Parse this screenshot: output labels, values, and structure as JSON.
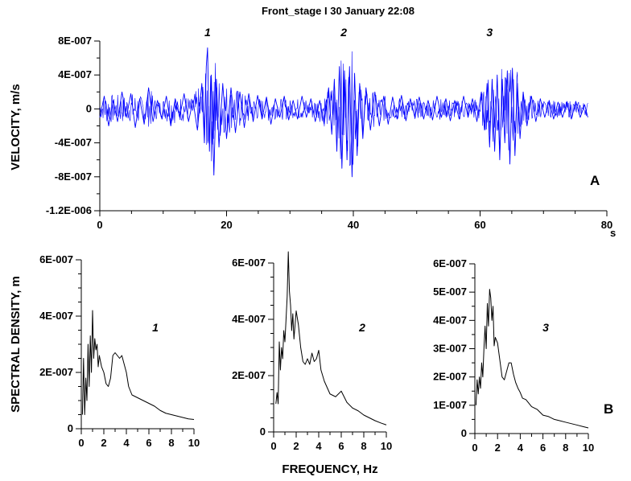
{
  "title": "Front_stage I   30 January 22:08",
  "panel_a_label": "A",
  "panel_b_label": "B",
  "colors": {
    "trace": "#0000ff",
    "spectrum": "#000000",
    "axis": "#000000"
  },
  "chart_data": [
    {
      "type": "line",
      "id": "velocity",
      "ylabel": "VELOCITY, m/s",
      "xunit": "s",
      "xlim": [
        0,
        80
      ],
      "ylim": [
        -1.2e-06,
        8e-07
      ],
      "x_ticks": [
        0,
        20,
        40,
        60,
        80
      ],
      "x_tick_labels": [
        "0",
        "20",
        "40",
        "60",
        "80"
      ],
      "y_ticks": [
        8e-07,
        4e-07,
        0,
        -4e-07,
        -8e-07,
        -1.2e-06
      ],
      "y_tick_labels": [
        "8E-007",
        "4E-007",
        "0",
        "-4E-007",
        "-8E-007",
        "-1.2E-006"
      ],
      "event_labels": [
        {
          "text": "1",
          "x": 17
        },
        {
          "text": "2",
          "x": 38.5
        },
        {
          "text": "3",
          "x": 61.5
        }
      ],
      "series": [
        {
          "x": [
            0,
            0.7,
            1.4,
            2.1,
            2.8,
            3.5,
            4.2,
            4.9,
            5.6,
            6.3,
            7,
            7.7,
            8.4,
            9.1,
            9.8,
            10.5,
            11.2,
            11.9,
            12.6,
            13.3,
            14,
            14.7,
            15.4,
            16.1,
            16.5,
            16.8,
            17,
            17.3,
            17.6,
            18,
            18.4,
            18.8,
            19.4,
            20,
            20.7,
            21.4,
            22.1,
            22.8,
            23.5,
            24.2,
            24.9,
            25.6,
            26.3,
            27,
            27.7,
            28.4,
            29.1,
            29.8,
            30.5,
            31.2,
            31.9,
            32.6,
            33.3,
            34,
            34.7,
            35.4,
            36.1,
            36.6,
            37,
            37.4,
            37.8,
            38.2,
            38.6,
            39,
            39.4,
            39.8,
            40.2,
            40.6,
            41,
            41.5,
            42,
            42.7,
            43.4,
            44.1,
            44.8,
            45.5,
            46.2,
            46.9,
            47.6,
            48.3,
            49,
            49.7,
            50.4,
            51.1,
            51.8,
            52.5,
            53.2,
            53.9,
            54.6,
            55.3,
            56,
            56.7,
            57.4,
            58.1,
            58.8,
            59.5,
            60.2,
            60.7,
            61.1,
            61.5,
            61.9,
            62.3,
            62.7,
            63.1,
            63.5,
            63.9,
            64.3,
            64.7,
            65.1,
            65.5,
            65.9,
            66.3,
            66.8,
            67.4,
            68.1,
            68.8,
            69.5,
            70.2,
            70.9,
            71.6,
            72.3,
            73,
            73.7,
            74.4,
            75.1,
            75.8,
            76.5,
            77
          ],
          "y": [
            -1e-07,
            1.5e-07,
            -2e-07,
            1e-07,
            -1.5e-07,
            2e-07,
            -1e-07,
            1.8e-07,
            -2.2e-07,
            1.2e-07,
            -1.8e-07,
            2.5e-07,
            -1.5e-07,
            1e-07,
            -1.2e-07,
            1.5e-07,
            -2e-07,
            1.2e-07,
            -1e-07,
            1.8e-07,
            -1.5e-07,
            1e-07,
            -2.5e-07,
            3e-07,
            -4e-07,
            5e-07,
            7.2e-07,
            -5e-07,
            4e-07,
            -7.8e-07,
            3.5e-07,
            -4.5e-07,
            3e-07,
            -3.5e-07,
            2.5e-07,
            -2.8e-07,
            2e-07,
            -2.2e-07,
            1.8e-07,
            -1.5e-07,
            1.6e-07,
            -1.2e-07,
            1.4e-07,
            -1.8e-07,
            1.2e-07,
            -1e-07,
            1.5e-07,
            -1.3e-07,
            1e-07,
            -1.2e-07,
            1.5e-07,
            -1e-07,
            1.2e-07,
            -1.5e-07,
            1e-07,
            -1.8e-07,
            2.5e-07,
            -3e-07,
            3.5e-07,
            -5e-07,
            5e-07,
            -7e-07,
            4.5e-07,
            -6e-07,
            5e-07,
            -8e-07,
            4.2e-07,
            -5.5e-07,
            3e-07,
            -3.5e-07,
            2.5e-07,
            -2.5e-07,
            2e-07,
            -2e-07,
            1.5e-07,
            -1.8e-07,
            1.4e-07,
            -1.2e-07,
            1.6e-07,
            -1.4e-07,
            1.2e-07,
            -1e-07,
            1.4e-07,
            -1.2e-07,
            1e-07,
            -1.3e-07,
            1.5e-07,
            -1e-07,
            1.2e-07,
            -1.4e-07,
            1e-07,
            -1.2e-07,
            1.5e-07,
            -1e-07,
            1.2e-07,
            -1.5e-07,
            2e-07,
            -2.5e-07,
            3e-07,
            -4.5e-07,
            3.5e-07,
            -5e-07,
            4e-07,
            -6e-07,
            3.5e-07,
            -4e-07,
            4.5e-07,
            -6.5e-07,
            4.8e-07,
            -5.5e-07,
            3e-07,
            -3.5e-07,
            2e-07,
            -2e-07,
            1.5e-07,
            -1.5e-07,
            1.2e-07,
            -1e-07,
            1e-07,
            -1.2e-07,
            8e-08,
            -1e-07,
            8e-08,
            -1.2e-07,
            9e-08,
            -1e-07,
            5e-08,
            -1e-07
          ]
        }
      ]
    },
    {
      "type": "line",
      "id": "spectrum-1",
      "ylabel": "SPECTRAL DENSITY, m",
      "series_label": "1",
      "xlim": [
        0,
        10
      ],
      "ylim": [
        0,
        6e-07
      ],
      "x_ticks": [
        0,
        2,
        4,
        6,
        8,
        10
      ],
      "x_tick_labels": [
        "0",
        "2",
        "4",
        "6",
        "8",
        "10"
      ],
      "y_ticks": [
        0,
        2e-07,
        4e-07,
        6e-07
      ],
      "y_tick_labels": [
        "0",
        "2E-007",
        "4E-007",
        "6E-007"
      ],
      "series": [
        {
          "x": [
            0.1,
            0.2,
            0.3,
            0.4,
            0.5,
            0.6,
            0.7,
            0.8,
            0.9,
            1,
            1.1,
            1.2,
            1.3,
            1.4,
            1.5,
            1.6,
            1.8,
            2,
            2.2,
            2.4,
            2.6,
            2.8,
            3,
            3.2,
            3.4,
            3.6,
            3.8,
            4,
            4.2,
            4.5,
            5,
            5.5,
            6,
            6.5,
            7,
            7.5,
            8,
            8.5,
            9,
            9.5,
            10
          ],
          "y": [
            5e-08,
            2.5e-07,
            5e-08,
            1.8e-07,
            1e-07,
            3e-07,
            1.5e-07,
            3.3e-07,
            2e-07,
            4.2e-07,
            2.5e-07,
            3.2e-07,
            2.8e-07,
            3e-07,
            2.2e-07,
            2.6e-07,
            2.2e-07,
            2e-07,
            1.6e-07,
            1.5e-07,
            1.8e-07,
            2.6e-07,
            2.7e-07,
            2.6e-07,
            2.5e-07,
            2.6e-07,
            2.3e-07,
            2e-07,
            1.5e-07,
            1.2e-07,
            1.1e-07,
            1e-07,
            9e-08,
            8e-08,
            6.5e-08,
            5.5e-08,
            5e-08,
            4.5e-08,
            4e-08,
            3.5e-08,
            3.3e-08
          ]
        }
      ]
    },
    {
      "type": "line",
      "id": "spectrum-2",
      "series_label": "2",
      "xlim": [
        0,
        10
      ],
      "ylim": [
        0,
        6e-07
      ],
      "x_ticks": [
        0,
        2,
        4,
        6,
        8,
        10
      ],
      "x_tick_labels": [
        "0",
        "2",
        "4",
        "6",
        "8",
        "10"
      ],
      "y_ticks": [
        0,
        2e-07,
        4e-07,
        6e-07
      ],
      "y_tick_labels": [
        "0",
        "2E-007",
        "4E-007",
        "6E-007"
      ],
      "series": [
        {
          "x": [
            0.2,
            0.3,
            0.4,
            0.5,
            0.6,
            0.7,
            0.8,
            0.9,
            1,
            1.1,
            1.2,
            1.3,
            1.4,
            1.5,
            1.6,
            1.7,
            1.8,
            2,
            2.2,
            2.4,
            2.6,
            2.8,
            3,
            3.2,
            3.4,
            3.6,
            3.8,
            4,
            4.2,
            4.5,
            5,
            5.5,
            6,
            6.5,
            7,
            7.5,
            8,
            8.5,
            9,
            9.5,
            10
          ],
          "y": [
            1e-07,
            1.4e-07,
            1e-07,
            3.2e-07,
            2.2e-07,
            3e-07,
            2.6e-07,
            3.6e-07,
            3.2e-07,
            4e-07,
            4.8e-07,
            6.4e-07,
            5e-07,
            4.5e-07,
            3.6e-07,
            4.2e-07,
            3.3e-07,
            4.3e-07,
            3.8e-07,
            3e-07,
            2.5e-07,
            2.4e-07,
            2.6e-07,
            2.4e-07,
            2.8e-07,
            2.5e-07,
            2.6e-07,
            2.9e-07,
            2.2e-07,
            1.8e-07,
            1.35e-07,
            1.25e-07,
            1.45e-07,
            1.05e-07,
            8.5e-08,
            7.5e-08,
            6e-08,
            5e-08,
            4e-08,
            3.2e-08,
            2.5e-08
          ]
        }
      ]
    },
    {
      "type": "line",
      "id": "spectrum-3",
      "series_label": "3",
      "xlim": [
        0,
        10
      ],
      "ylim": [
        0,
        6e-07
      ],
      "x_ticks": [
        0,
        2,
        4,
        6,
        8,
        10
      ],
      "x_tick_labels": [
        "0",
        "2",
        "4",
        "6",
        "8",
        "10"
      ],
      "y_ticks": [
        0,
        1e-07,
        2e-07,
        3e-07,
        4e-07,
        5e-07,
        6e-07
      ],
      "y_tick_labels": [
        "0",
        "1E-007",
        "2E-007",
        "3E-007",
        "4E-007",
        "5E-007",
        "6E-007"
      ],
      "series": [
        {
          "x": [
            0.1,
            0.2,
            0.3,
            0.4,
            0.5,
            0.6,
            0.7,
            0.8,
            0.9,
            1,
            1.1,
            1.2,
            1.3,
            1.4,
            1.5,
            1.6,
            1.7,
            1.8,
            2,
            2.2,
            2.4,
            2.6,
            2.8,
            3,
            3.2,
            3.4,
            3.6,
            3.8,
            4,
            4.2,
            4.5,
            5,
            5.5,
            6,
            6.5,
            7,
            7.5,
            8,
            8.5,
            9,
            9.5,
            10
          ],
          "y": [
            1e-07,
            1.9e-07,
            1.4e-07,
            2e-07,
            1.6e-07,
            2.5e-07,
            2e-07,
            3e-07,
            3.8e-07,
            3e-07,
            4.6e-07,
            3.8e-07,
            5.1e-07,
            4.8e-07,
            4e-07,
            4.5e-07,
            3.1e-07,
            3.4e-07,
            3.2e-07,
            2.6e-07,
            2e-07,
            1.9e-07,
            2.2e-07,
            2.5e-07,
            2.5e-07,
            2.1e-07,
            1.8e-07,
            1.6e-07,
            1.45e-07,
            1.25e-07,
            1.2e-07,
            9.5e-08,
            8.5e-08,
            6.5e-08,
            6e-08,
            5e-08,
            4.5e-08,
            4e-08,
            3.5e-08,
            3e-08,
            2.5e-08,
            2e-08
          ]
        }
      ]
    }
  ],
  "x_axis_title_b": "FREQUENCY, Hz"
}
